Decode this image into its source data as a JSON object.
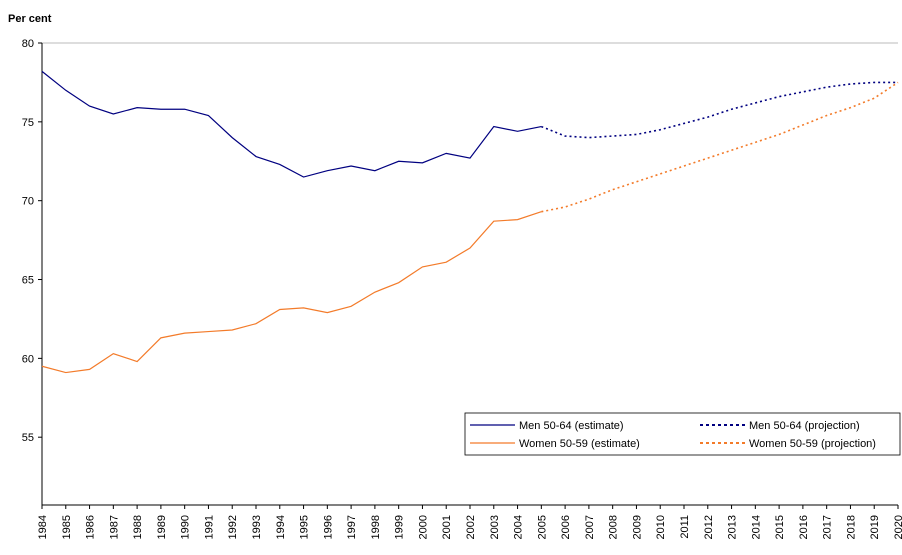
{
  "chart_data": {
    "type": "line",
    "y_axis_label": "Per cent",
    "x": [
      1984,
      1985,
      1986,
      1987,
      1988,
      1989,
      1990,
      1991,
      1992,
      1993,
      1994,
      1995,
      1996,
      1997,
      1998,
      1999,
      2000,
      2001,
      2002,
      2003,
      2004,
      2005,
      2006,
      2007,
      2008,
      2009,
      2010,
      2011,
      2012,
      2013,
      2014,
      2015,
      2016,
      2017,
      2018,
      2019,
      2020
    ],
    "xlim": [
      1984,
      2020
    ],
    "xticks": [
      1984,
      1985,
      1986,
      1987,
      1988,
      1989,
      1990,
      1991,
      1992,
      1993,
      1994,
      1995,
      1996,
      1997,
      1998,
      1999,
      2000,
      2001,
      2002,
      2003,
      2004,
      2005,
      2006,
      2007,
      2008,
      2009,
      2010,
      2011,
      2012,
      2013,
      2014,
      2015,
      2016,
      2017,
      2018,
      2019,
      2020
    ],
    "ylim": [
      50.7,
      80
    ],
    "yticks": [
      55,
      60,
      65,
      70,
      75,
      80
    ],
    "grid": false,
    "series": [
      {
        "name": "Men 50-64 (estimate)",
        "color": "#000080",
        "dashed": false,
        "values": [
          78.2,
          77.0,
          76.0,
          75.5,
          75.9,
          75.8,
          75.8,
          75.4,
          74.0,
          72.8,
          72.3,
          71.5,
          71.9,
          72.2,
          71.9,
          72.5,
          72.4,
          73.0,
          72.7,
          74.7,
          74.4,
          74.7,
          null,
          null,
          null,
          null,
          null,
          null,
          null,
          null,
          null,
          null,
          null,
          null,
          null,
          null,
          null
        ]
      },
      {
        "name": "Women 50-59 (estimate)",
        "color": "#f37b2a",
        "dashed": false,
        "values": [
          59.5,
          59.1,
          59.3,
          60.3,
          59.8,
          61.3,
          61.6,
          61.7,
          61.8,
          62.2,
          63.1,
          63.2,
          62.9,
          63.3,
          64.2,
          64.8,
          65.8,
          66.1,
          67.0,
          68.7,
          68.8,
          69.3,
          null,
          null,
          null,
          null,
          null,
          null,
          null,
          null,
          null,
          null,
          null,
          null,
          null,
          null,
          null
        ]
      },
      {
        "name": "Men 50-64 (projection)",
        "color": "#000080",
        "dashed": true,
        "values": [
          null,
          null,
          null,
          null,
          null,
          null,
          null,
          null,
          null,
          null,
          null,
          null,
          null,
          null,
          null,
          null,
          null,
          null,
          null,
          null,
          null,
          74.7,
          74.1,
          74.0,
          74.1,
          74.2,
          74.5,
          74.9,
          75.3,
          75.8,
          76.2,
          76.6,
          76.9,
          77.2,
          77.4,
          77.5,
          77.5
        ]
      },
      {
        "name": "Women 50-59 (projection)",
        "color": "#f37b2a",
        "dashed": true,
        "values": [
          null,
          null,
          null,
          null,
          null,
          null,
          null,
          null,
          null,
          null,
          null,
          null,
          null,
          null,
          null,
          null,
          null,
          null,
          null,
          null,
          null,
          69.3,
          69.6,
          70.1,
          70.7,
          71.2,
          71.7,
          72.2,
          72.7,
          73.2,
          73.7,
          74.2,
          74.8,
          75.4,
          75.9,
          76.5,
          77.5
        ]
      }
    ],
    "legend": "lower right"
  }
}
